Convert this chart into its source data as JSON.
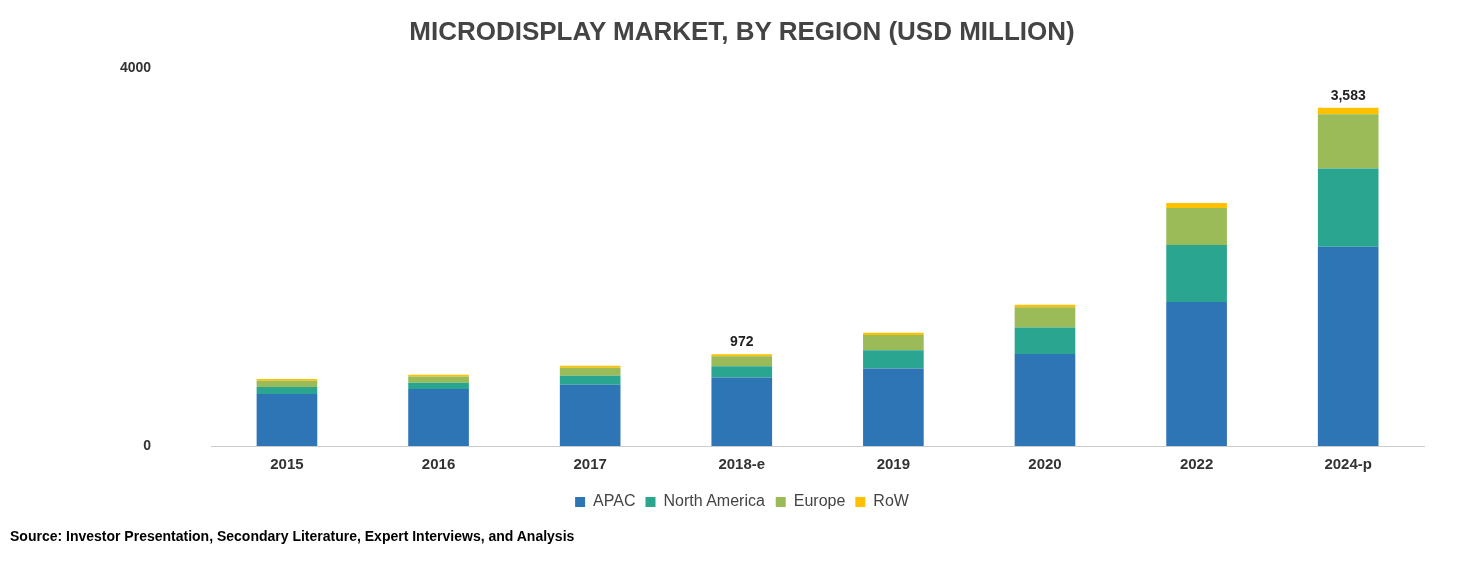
{
  "chart_data": {
    "type": "bar",
    "title": "MICRODISPLAY MARKET, BY REGION (USD MILLION)",
    "categories": [
      "2015",
      "2016",
      "2017",
      "2018-e",
      "2019",
      "2020",
      "2022",
      "2024-p"
    ],
    "series": [
      {
        "name": "APAC",
        "color": "#2e75b6",
        "values": [
          550,
          605,
          650,
          725,
          820,
          975,
          1525,
          2110
        ]
      },
      {
        "name": "North America",
        "color": "#2aa590",
        "values": [
          75,
          65,
          95,
          120,
          195,
          280,
          605,
          830
        ]
      },
      {
        "name": "Europe",
        "color": "#9bbb59",
        "values": [
          65,
          65,
          85,
          105,
          160,
          215,
          390,
          575
        ]
      },
      {
        "name": "RoW",
        "color": "#ffc000",
        "values": [
          20,
          20,
          20,
          22,
          25,
          25,
          55,
          68
        ]
      }
    ],
    "stacked": true,
    "totals": [
      null,
      null,
      null,
      "972",
      null,
      null,
      null,
      "3,583"
    ],
    "ylim": [
      0,
      4000
    ],
    "yticks": [
      0,
      4000
    ],
    "grid": false,
    "legend": "bottom",
    "annotations": [
      "Source: Investor Presentation, Secondary Literature, Expert Interviews, and Analysis"
    ]
  }
}
